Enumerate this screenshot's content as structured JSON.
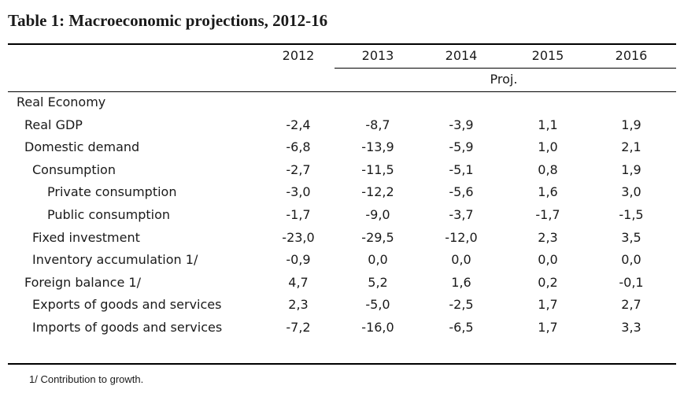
{
  "title": "Table 1: Macroeconomic projections, 2012-16",
  "years": [
    "2012",
    "2013",
    "2014",
    "2015",
    "2016"
  ],
  "projection_label": "Proj.",
  "rows": [
    {
      "label": "Real Economy",
      "indent": 0,
      "values": [
        "",
        "",
        "",
        "",
        ""
      ]
    },
    {
      "label": "Real GDP",
      "indent": 1,
      "values": [
        "-2,4",
        "-8,7",
        "-3,9",
        "1,1",
        "1,9"
      ]
    },
    {
      "label": "Domestic demand",
      "indent": 1,
      "values": [
        "-6,8",
        "-13,9",
        "-5,9",
        "1,0",
        "2,1"
      ]
    },
    {
      "label": "Consumption",
      "indent": 2,
      "values": [
        "-2,7",
        "-11,5",
        "-5,1",
        "0,8",
        "1,9"
      ]
    },
    {
      "label": "Private consumption",
      "indent": 3,
      "values": [
        "-3,0",
        "-12,2",
        "-5,6",
        "1,6",
        "3,0"
      ]
    },
    {
      "label": "Public consumption",
      "indent": 3,
      "values": [
        "-1,7",
        "-9,0",
        "-3,7",
        "-1,7",
        "-1,5"
      ]
    },
    {
      "label": "Fixed investment",
      "indent": 2,
      "values": [
        "-23,0",
        "-29,5",
        "-12,0",
        "2,3",
        "3,5"
      ]
    },
    {
      "label": "Inventory accumulation 1/",
      "indent": 2,
      "values": [
        "-0,9",
        "0,0",
        "0,0",
        "0,0",
        "0,0"
      ]
    },
    {
      "label": "Foreign balance 1/",
      "indent": 1,
      "values": [
        "4,7",
        "5,2",
        "1,6",
        "0,2",
        "-0,1"
      ]
    },
    {
      "label": "Exports of goods and services",
      "indent": 2,
      "values": [
        "2,3",
        "-5,0",
        "-2,5",
        "1,7",
        "2,7"
      ]
    },
    {
      "label": "Imports of goods and services",
      "indent": 2,
      "values": [
        "-7,2",
        "-16,0",
        "-6,5",
        "1,7",
        "3,3"
      ]
    }
  ],
  "footnote": "1/ Contribution to growth."
}
